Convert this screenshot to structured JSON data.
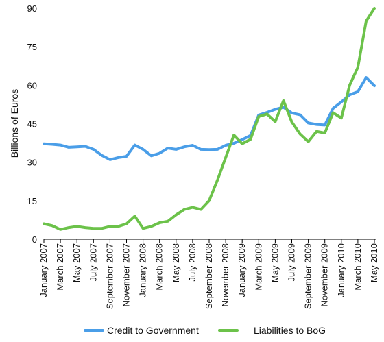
{
  "chart_data": {
    "type": "line",
    "title": "",
    "xlabel": "",
    "ylabel": "Billions of Euros",
    "ylim": [
      0,
      90
    ],
    "yticks": [
      0,
      15,
      30,
      45,
      60,
      75,
      90
    ],
    "grid": false,
    "legend": "bottom",
    "x": [
      "Jan 2007",
      "Feb 2007",
      "Mar 2007",
      "Apr 2007",
      "May 2007",
      "Jun 2007",
      "Jul 2007",
      "Aug 2007",
      "Sep 2007",
      "Oct 2007",
      "Nov 2007",
      "Dec 2007",
      "Jan 2008",
      "Feb 2008",
      "Mar 2008",
      "Apr 2008",
      "May 2008",
      "Jun 2008",
      "Jul 2008",
      "Aug 2008",
      "Sep 2008",
      "Oct 2008",
      "Nov 2008",
      "Dec 2008",
      "Jan 2009",
      "Feb 2009",
      "Mar 2009",
      "Apr 2009",
      "May 2009",
      "Jun 2009",
      "Jul 2009",
      "Aug 2009",
      "Sep 2009",
      "Oct 2009",
      "Nov 2009",
      "Dec 2009",
      "Jan 2010",
      "Feb 2010",
      "Mar 2010",
      "Apr 2010",
      "May 2010"
    ],
    "xtick_labels": [
      "January 2007",
      "March 2007",
      "May 2007",
      "July 2007",
      "September 2007",
      "November 2007",
      "January 2008",
      "March 2008",
      "May 2008",
      "July 2008",
      "September 2008",
      "November 2008",
      "January 2009",
      "March 2009",
      "May 2009",
      "July 2009",
      "September 2009",
      "November 2009",
      "January 2010",
      "March 2010",
      "May 2010"
    ],
    "series": [
      {
        "name": "Credit to Government",
        "color": "#4a9ee8",
        "values": [
          37.2,
          37.0,
          36.7,
          35.8,
          36.0,
          36.2,
          35.0,
          32.7,
          31.0,
          31.8,
          32.3,
          36.7,
          35.0,
          32.5,
          33.5,
          35.5,
          35.0,
          36.0,
          36.6,
          35.0,
          34.9,
          35.0,
          36.6,
          37.4,
          38.8,
          40.4,
          48.4,
          49.4,
          50.6,
          51.4,
          49.2,
          48.5,
          45.3,
          44.7,
          44.5,
          51.0,
          53.5,
          56.3,
          57.5,
          63.0,
          59.8
        ]
      },
      {
        "name": "Liabilities to BoG",
        "color": "#6cc24a",
        "values": [
          6.0,
          5.3,
          3.8,
          4.5,
          5.0,
          4.5,
          4.2,
          4.2,
          5.0,
          5.0,
          6.0,
          9.0,
          4.2,
          5.0,
          6.4,
          7.0,
          9.5,
          11.6,
          12.4,
          11.6,
          15.0,
          23.0,
          31.8,
          40.6,
          37.2,
          38.9,
          47.8,
          48.8,
          45.8,
          54.0,
          45.7,
          41.0,
          38.0,
          42.0,
          41.4,
          49.3,
          47.2,
          60.0,
          67.0,
          85.0,
          90.0
        ]
      }
    ]
  }
}
